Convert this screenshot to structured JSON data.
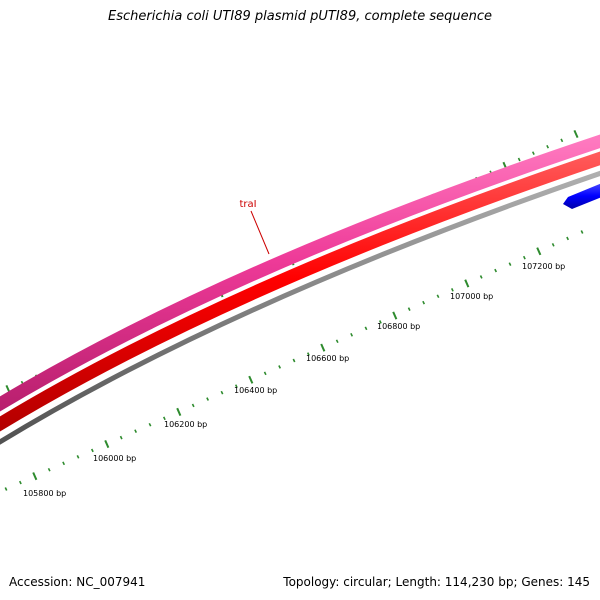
{
  "title": "Escherichia coli UTI89 plasmid pUTI89, complete sequence",
  "footer": {
    "accession_text": "Accession: NC_007941",
    "stats_text": "Topology: circular; Length: 114,230 bp; Genes: 145"
  },
  "gene_label": {
    "text": "traI",
    "color": "#cc0000"
  },
  "colors": {
    "pink_feature": "#e8338f",
    "red_feature": "#ff0000",
    "gray_backbone": "#808080",
    "blue_feature": "#0000ff",
    "tick": "#2e8b2e"
  },
  "scale_labels": [
    "105800 bp",
    "106000 bp",
    "106200 bp",
    "106400 bp",
    "106600 bp",
    "106800 bp",
    "107000 bp",
    "107200 bp"
  ]
}
